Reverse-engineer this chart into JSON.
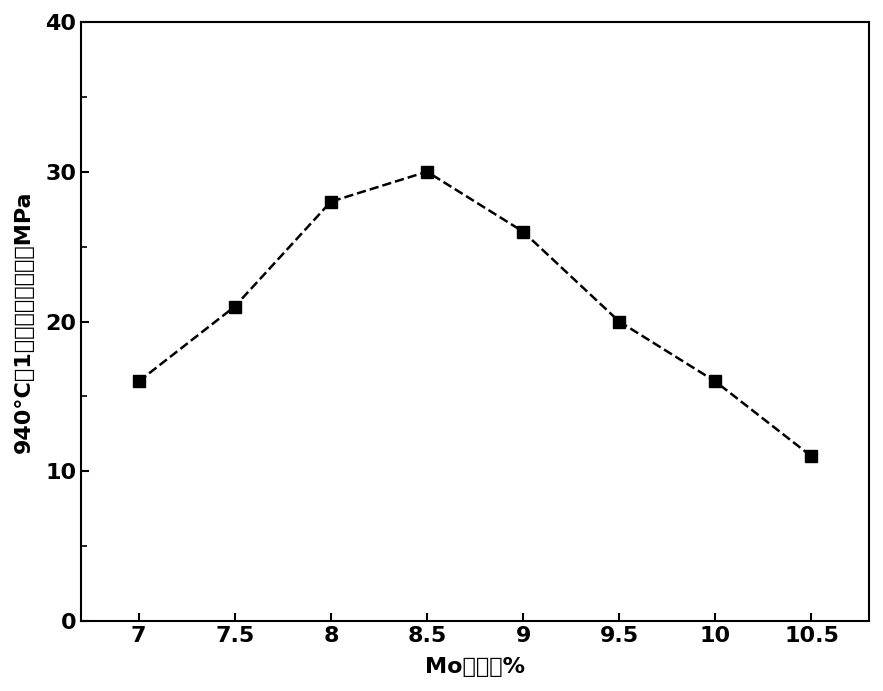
{
  "x": [
    7,
    7.5,
    8,
    8.5,
    9,
    9.5,
    10,
    10.5
  ],
  "y": [
    16,
    21,
    28,
    30,
    26,
    20,
    16,
    11
  ],
  "xlabel": "Mo含量，%",
  "ylabel": "940°C，1万小时持久强度，MPa",
  "xlim": [
    6.7,
    10.8
  ],
  "ylim": [
    0,
    40
  ],
  "xticks": [
    7,
    7.5,
    8,
    8.5,
    9,
    9.5,
    10,
    10.5
  ],
  "yticks_major": [
    0,
    10,
    20,
    30,
    40
  ],
  "yticks_minor": [
    5,
    15,
    25,
    35
  ],
  "line_color": "#000000",
  "marker": "s",
  "marker_size": 8,
  "line_style": "--",
  "line_width": 1.8,
  "background_color": "#ffffff",
  "tick_fontsize": 16,
  "label_fontsize": 16
}
